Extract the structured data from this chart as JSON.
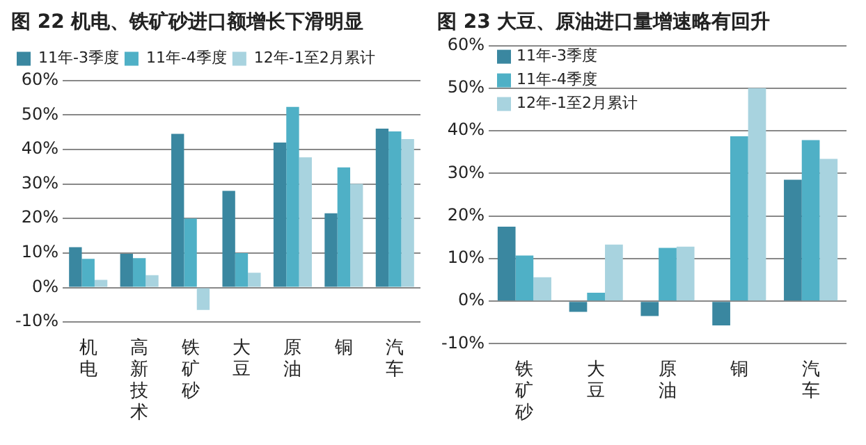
{
  "chart_data": [
    {
      "type": "bar",
      "title": "图 22 机电、铁矿砂进口额增长下滑明显",
      "categories": [
        "机电",
        "高新技术",
        "铁矿砂",
        "大豆",
        "原油",
        "铜",
        "汽车"
      ],
      "series": [
        {
          "name": "11年-3季度",
          "color": "#3a87a0",
          "values": [
            11.7,
            9.8,
            44.5,
            28,
            42,
            21.5,
            46
          ]
        },
        {
          "name": "11年-4季度",
          "color": "#4fb0c6",
          "values": [
            8.3,
            8.5,
            20,
            10,
            52.3,
            34.8,
            45.2
          ]
        },
        {
          "name": "12年-1至2月累计",
          "color": "#a8d3df",
          "values": [
            2.2,
            3.6,
            -6.5,
            4.3,
            37.7,
            30,
            43
          ]
        }
      ],
      "ylim": [
        -10,
        60
      ],
      "yticks": [
        {
          "value": -10,
          "label": "-10%"
        },
        {
          "value": 0,
          "label": "0%"
        },
        {
          "value": 10,
          "label": "10%"
        },
        {
          "value": 20,
          "label": "20%"
        },
        {
          "value": 30,
          "label": "30%"
        },
        {
          "value": 40,
          "label": "40%"
        },
        {
          "value": 50,
          "label": "50%"
        },
        {
          "value": 60,
          "label": "60%"
        }
      ],
      "grid": "y",
      "legend": "top"
    },
    {
      "type": "bar",
      "title": "图 23 大豆、原油进口量增速略有回升",
      "categories": [
        "铁矿砂",
        "大豆",
        "原油",
        "铜",
        "汽车"
      ],
      "series": [
        {
          "name": "11年-3季度",
          "color": "#3a87a0",
          "values": [
            17.5,
            -2.5,
            -3.5,
            -5.7,
            28.5
          ]
        },
        {
          "name": "11年-4季度",
          "color": "#4fb0c6",
          "values": [
            10.7,
            2,
            12.5,
            38.7,
            37.8
          ]
        },
        {
          "name": "12年-1至2月累计",
          "color": "#a8d3df",
          "values": [
            5.6,
            13.3,
            12.8,
            50,
            33.4
          ]
        }
      ],
      "ylim": [
        -10,
        60
      ],
      "yticks": [
        {
          "value": -10,
          "label": "-10%"
        },
        {
          "value": 0,
          "label": "0%"
        },
        {
          "value": 10,
          "label": "10%"
        },
        {
          "value": 20,
          "label": "20%"
        },
        {
          "value": 30,
          "label": "30%"
        },
        {
          "value": 40,
          "label": "40%"
        },
        {
          "value": 50,
          "label": "50%"
        },
        {
          "value": 60,
          "label": "60%"
        }
      ],
      "grid": "y",
      "legend": "top left"
    }
  ]
}
